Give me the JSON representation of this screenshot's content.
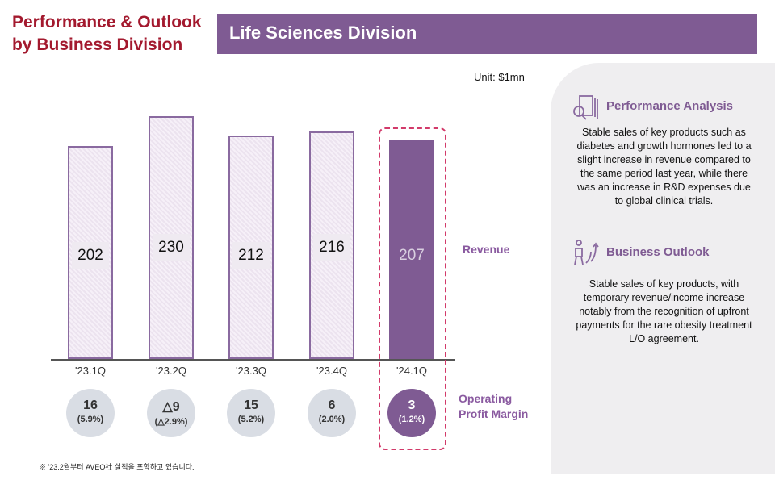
{
  "header": {
    "title_line1": "Performance & Outlook",
    "title_line2": "by Business Division",
    "division": "Life Sciences Division"
  },
  "unit": "Unit: $1mn",
  "chart_data": {
    "type": "bar",
    "categories": [
      "'23.1Q",
      "'23.2Q",
      "'23.3Q",
      "'23.4Q",
      "'24.1Q"
    ],
    "series": [
      {
        "name": "Revenue",
        "values": [
          202,
          230,
          212,
          216,
          207
        ]
      }
    ],
    "value_labels": [
      "202",
      "230",
      "212",
      "216",
      "207"
    ],
    "operating_profit": {
      "name": "Operating Profit Margin",
      "values": [
        "16",
        "△9",
        "15",
        "6",
        "3"
      ],
      "margins": [
        "(5.9%)",
        "(△2.9%)",
        "(5.2%)",
        "(2.0%)",
        "(1.2%)"
      ]
    },
    "highlight_index": 4,
    "colors": {
      "bar": "#7f5b93",
      "highlight_box": "#d23a6a",
      "circle": "#d9dde4"
    }
  },
  "labels": {
    "revenue": "Revenue",
    "opm": "Operating Profit Margin"
  },
  "panel": {
    "analysis_title": "Performance Analysis",
    "analysis_text": "Stable sales of key products such as diabetes and growth hormones led to a slight increase in revenue compared to the same period last year, while there was an increase in R&D expenses due to global clinical trials.",
    "outlook_title": "Business Outlook",
    "outlook_text": "Stable sales of key products, with temporary revenue/income increase notably from the recognition of upfront payments for the rare obesity treatment L/O agreement."
  },
  "footnote": "※ '23.2월부터 AVEO社 실적을 포함하고 있습니다."
}
